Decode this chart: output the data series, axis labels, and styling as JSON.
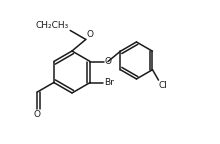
{
  "background": "#ffffff",
  "line_color": "#1a1a1a",
  "line_width": 1.1,
  "font_size_label": 6.5,
  "figsize": [
    2.2,
    1.44
  ],
  "dpi": 100,
  "xlim": [
    0.0,
    2.2
  ],
  "ylim": [
    0.0,
    1.44
  ]
}
